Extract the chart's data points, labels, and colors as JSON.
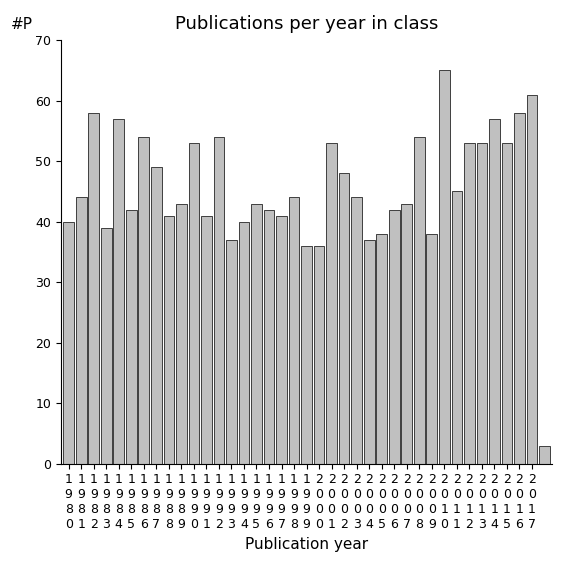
{
  "title": "Publications per year in class",
  "xlabel": "Publication year",
  "ylabel": "#P",
  "years": [
    1980,
    1981,
    1982,
    1983,
    1984,
    1985,
    1986,
    1987,
    1988,
    1989,
    1990,
    1991,
    1992,
    1993,
    1994,
    1995,
    1996,
    1997,
    1998,
    1999,
    2000,
    2001,
    2002,
    2003,
    2004,
    2005,
    2006,
    2007,
    2008,
    2009,
    2010,
    2011,
    2012,
    2013,
    2014,
    2015,
    2016,
    2017
  ],
  "values": [
    40,
    44,
    58,
    39,
    57,
    42,
    54,
    49,
    41,
    43,
    53,
    41,
    54,
    37,
    40,
    43,
    42,
    41,
    44,
    36,
    36,
    53,
    48,
    44,
    37,
    38,
    42,
    43,
    54,
    38,
    65,
    45,
    53,
    53,
    57,
    53,
    58,
    61
  ],
  "last_bar_value": 3,
  "bar_color": "#c0c0c0",
  "bar_edge_color": "#000000",
  "ylim": [
    0,
    70
  ],
  "yticks": [
    0,
    10,
    20,
    30,
    40,
    50,
    60,
    70
  ],
  "bg_color": "#ffffff",
  "title_fontsize": 13,
  "axis_label_fontsize": 11,
  "tick_fontsize": 9
}
